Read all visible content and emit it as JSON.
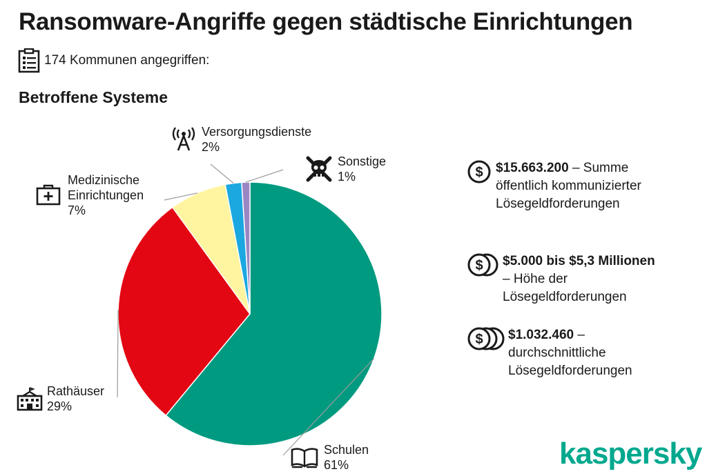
{
  "title": "Ransomware-Angriffe gegen städtische Einrichtungen",
  "count_text": "174 Kommunen angegriffen:",
  "subtitle": "Betroffene Systeme",
  "chart_data": {
    "type": "pie",
    "slices": [
      {
        "label": "Schulen",
        "value": 61,
        "pct": "61%",
        "color": "#009a80",
        "icon": "book-icon"
      },
      {
        "label": "Rathäuser",
        "value": 29,
        "pct": "29%",
        "color": "#e30613",
        "icon": "town-hall-icon"
      },
      {
        "label": "Medizinische Einrichtungen",
        "label_lines": [
          "Medizinische",
          "Einrichtungen"
        ],
        "value": 7,
        "pct": "7%",
        "color": "#fff5a0",
        "icon": "first-aid-kit-icon"
      },
      {
        "label": "Versorgungsdienste",
        "value": 2,
        "pct": "2%",
        "color": "#1ba8e0",
        "icon": "antenna-tower-icon"
      },
      {
        "label": "Sonstige",
        "value": 1,
        "pct": "1%",
        "color": "#9a86c4",
        "icon": "skull-icon"
      }
    ]
  },
  "stats": [
    {
      "bold": "$15.663.200",
      "rest": " – Summe öffentlich kommunizierter Lösegeldforderungen",
      "icon": "dollar-coin-icon"
    },
    {
      "bold": "$5.000 bis $5,3 Millionen",
      "rest": " – Höhe der Lösegeldforderungen",
      "icon": "dollar-coins-pair-icon"
    },
    {
      "bold": "$1.032.460",
      "rest": " – durchschnittliche Lösegeldforderungen",
      "icon": "dollar-coins-stack-icon"
    }
  ],
  "brand": "kaspersky",
  "colors": {
    "accent": "#00a88e",
    "text": "#1a1a1a"
  }
}
